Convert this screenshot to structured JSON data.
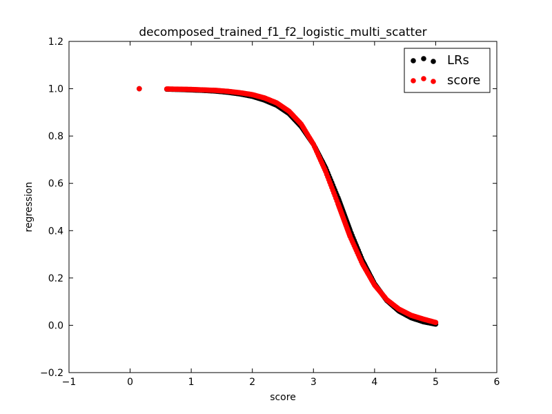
{
  "chart_data": {
    "type": "scatter",
    "title": "decomposed_trained_f1_f2_logistic_multi_scatter",
    "xlabel": "score",
    "ylabel": "regression",
    "xlim": [
      -1,
      6
    ],
    "ylim": [
      -0.2,
      1.2
    ],
    "xticks": [
      "−1",
      "0",
      "1",
      "2",
      "3",
      "4",
      "5",
      "6"
    ],
    "xtick_values": [
      -1,
      0,
      1,
      2,
      3,
      4,
      5,
      6
    ],
    "yticks": [
      "−0.2",
      "0.0",
      "0.2",
      "0.4",
      "0.6",
      "0.8",
      "1.0",
      "1.2"
    ],
    "ytick_values": [
      -0.2,
      0.0,
      0.2,
      0.4,
      0.6,
      0.8,
      1.0,
      1.2
    ],
    "grid": false,
    "legend_position": "top-right",
    "series": [
      {
        "name": "LRs",
        "color": "#000000",
        "points": [
          [
            0.15,
            1.0
          ],
          [
            0.6,
            0.998
          ],
          [
            0.8,
            0.997
          ],
          [
            1.0,
            0.995
          ],
          [
            1.2,
            0.993
          ],
          [
            1.4,
            0.99
          ],
          [
            1.6,
            0.985
          ],
          [
            1.8,
            0.978
          ],
          [
            2.0,
            0.968
          ],
          [
            2.2,
            0.952
          ],
          [
            2.4,
            0.93
          ],
          [
            2.6,
            0.895
          ],
          [
            2.8,
            0.84
          ],
          [
            3.0,
            0.765
          ],
          [
            3.2,
            0.665
          ],
          [
            3.4,
            0.54
          ],
          [
            3.5,
            0.47
          ],
          [
            3.6,
            0.4
          ],
          [
            3.8,
            0.275
          ],
          [
            4.0,
            0.175
          ],
          [
            4.2,
            0.105
          ],
          [
            4.4,
            0.06
          ],
          [
            4.6,
            0.032
          ],
          [
            4.8,
            0.015
          ],
          [
            5.0,
            0.005
          ]
        ]
      },
      {
        "name": "score",
        "color": "#ff0000",
        "points": [
          [
            0.15,
            1.0
          ],
          [
            0.6,
            0.999
          ],
          [
            0.8,
            0.998
          ],
          [
            1.0,
            0.997
          ],
          [
            1.2,
            0.995
          ],
          [
            1.4,
            0.993
          ],
          [
            1.6,
            0.989
          ],
          [
            1.8,
            0.983
          ],
          [
            2.0,
            0.975
          ],
          [
            2.2,
            0.961
          ],
          [
            2.4,
            0.94
          ],
          [
            2.6,
            0.905
          ],
          [
            2.8,
            0.85
          ],
          [
            3.0,
            0.765
          ],
          [
            3.2,
            0.65
          ],
          [
            3.4,
            0.515
          ],
          [
            3.5,
            0.445
          ],
          [
            3.6,
            0.375
          ],
          [
            3.8,
            0.26
          ],
          [
            4.0,
            0.17
          ],
          [
            4.2,
            0.108
          ],
          [
            4.4,
            0.068
          ],
          [
            4.6,
            0.042
          ],
          [
            4.8,
            0.026
          ],
          [
            5.0,
            0.012
          ]
        ]
      }
    ]
  }
}
